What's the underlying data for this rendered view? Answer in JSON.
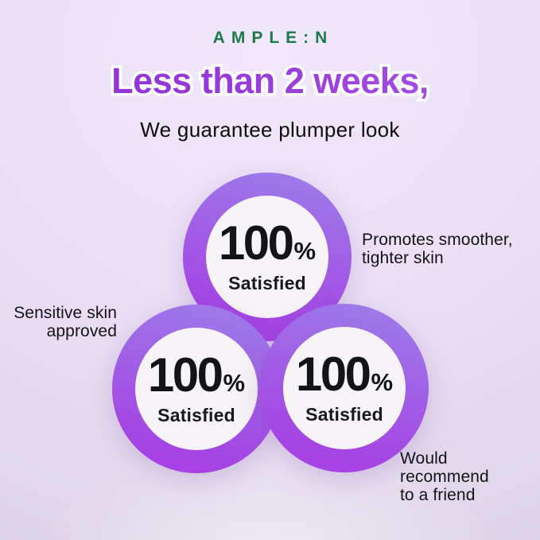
{
  "brand": {
    "name": "AMPLE:N",
    "color": "#1e7a4e"
  },
  "header": {
    "headline": "Less than 2 weeks,",
    "headline_color": "#9735d8",
    "headline_outline_color": "#ffffff",
    "subheadline": "We guarantee plumper look"
  },
  "stats": {
    "ring_gradient": [
      "#9d7de9",
      "#a93ee6"
    ],
    "inner_circle_color": "#f6f4f7",
    "circles": [
      {
        "value": "100",
        "unit": "%",
        "label": "Satisfied"
      },
      {
        "value": "100",
        "unit": "%",
        "label": "Satisfied"
      },
      {
        "value": "100",
        "unit": "%",
        "label": "Satisfied"
      }
    ]
  },
  "annotations": {
    "top_right": "Promotes smoother,\ntighter skin",
    "left": "Sensitive skin\napproved",
    "bottom_right": "Would recommend\nto a friend"
  },
  "background_color": "#e9def5"
}
